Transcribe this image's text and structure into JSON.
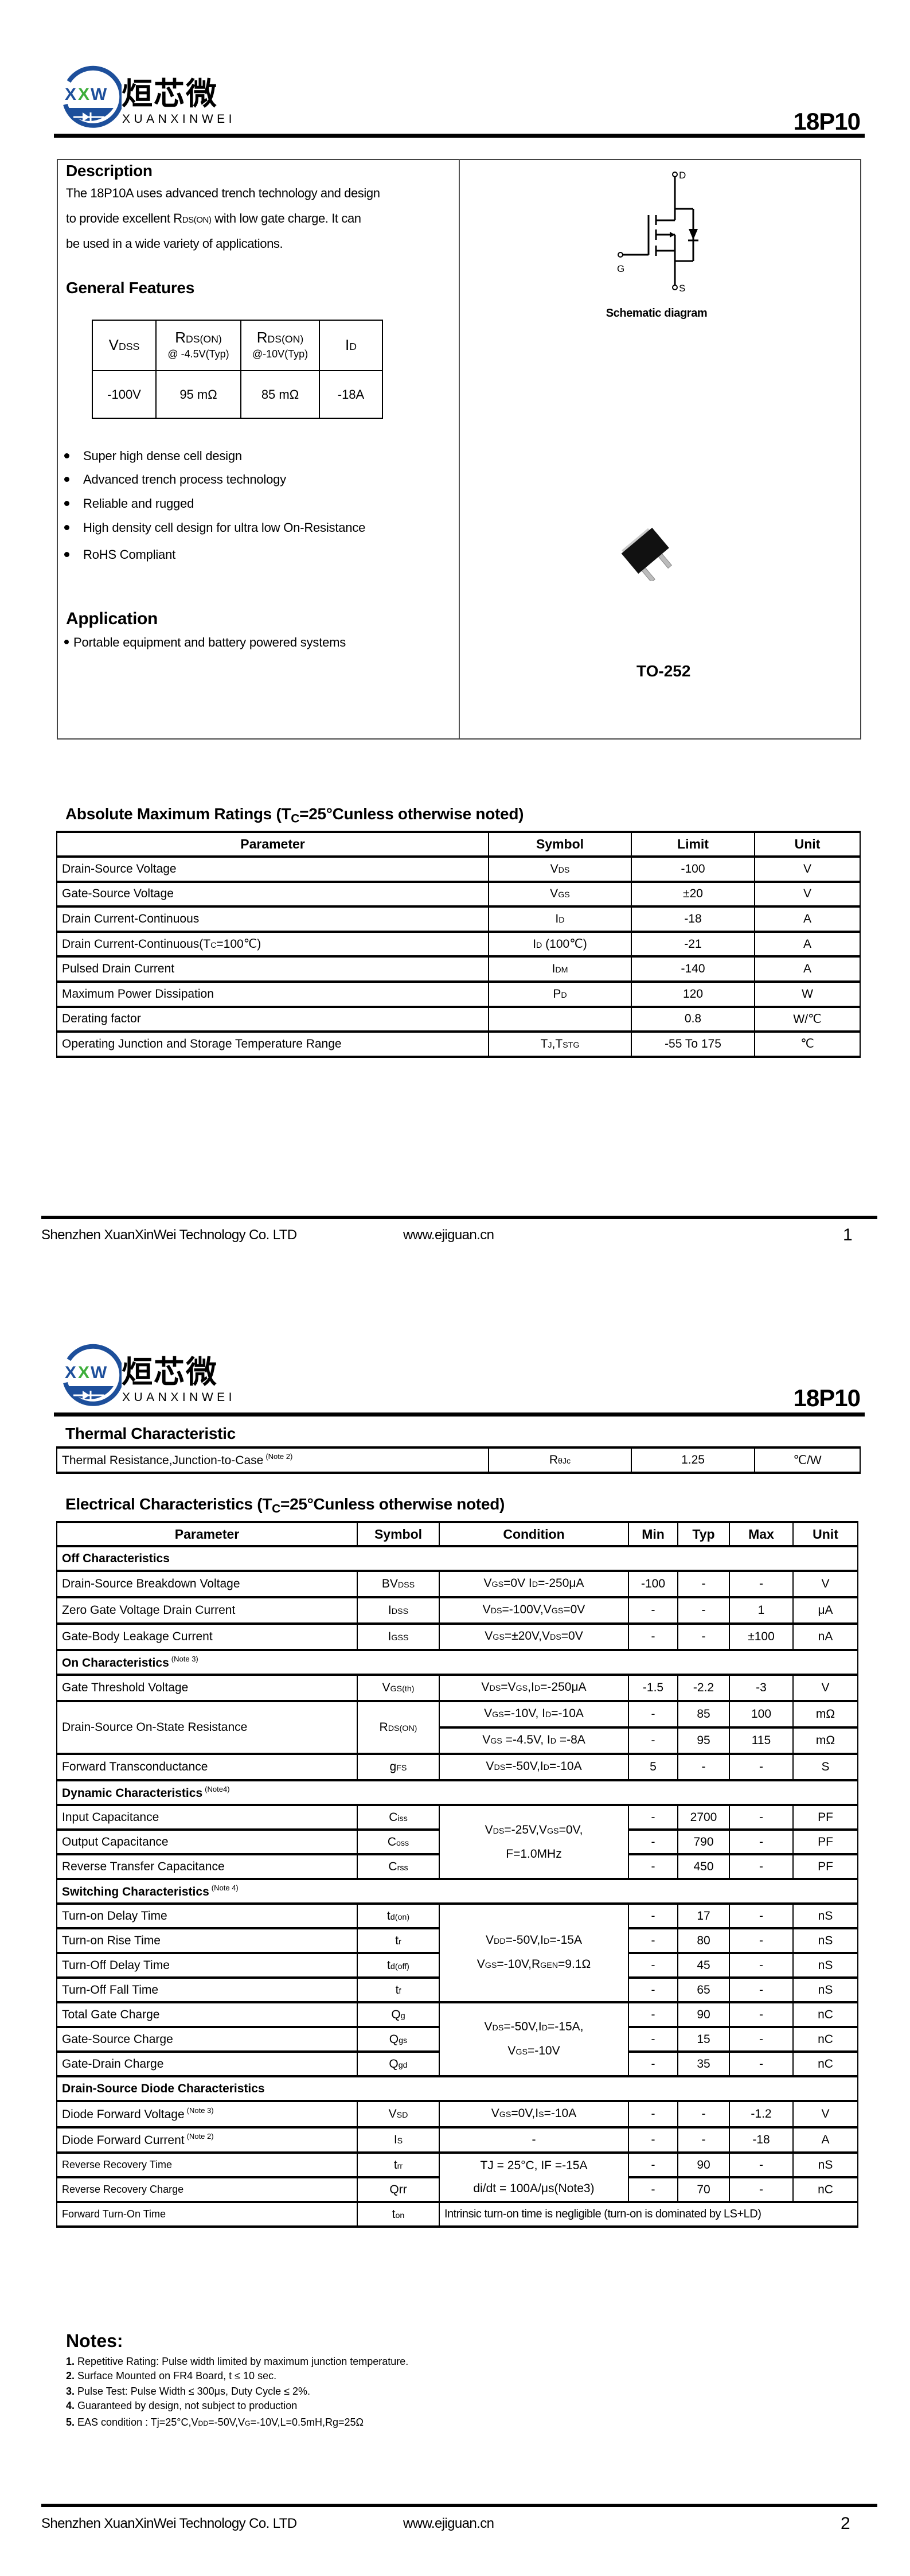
{
  "header": {
    "logo": {
      "mark": [
        "X",
        "X",
        "W"
      ],
      "cn": "烜芯微",
      "en": "XUANXINWEI"
    },
    "part_number": "18P10"
  },
  "colors": {
    "logo_blue": "#1d4f9b",
    "logo_green": "#3dae3a",
    "text": "#000000",
    "package_body": "#111111"
  },
  "page1": {
    "description": {
      "title": "Description",
      "lines": [
        [
          "The 18P10A uses advanced trench technology and design"
        ],
        [
          "to provide excellent R",
          "DS(ON)",
          " with low gate charge. It can"
        ],
        [
          "be used in a wide variety of applications."
        ]
      ]
    },
    "general_features": {
      "title": "General Features",
      "headers": [
        {
          "top": [
            "V",
            "DSS"
          ],
          "bottom": ""
        },
        {
          "top": [
            "R",
            "DS(ON)"
          ],
          "bottom": "@ -4.5V(Typ)"
        },
        {
          "top": [
            "R",
            "DS(ON)"
          ],
          "bottom": "@-10V(Typ)"
        },
        {
          "top": [
            "I",
            "D"
          ],
          "bottom": ""
        }
      ],
      "values": [
        "-100V",
        "95 mΩ",
        "85 mΩ",
        "-18A"
      ],
      "bullets": [
        "Super high dense cell design",
        "Advanced trench process technology",
        "Reliable and rugged",
        "High density cell design for ultra low On-Resistance",
        "RoHS Compliant"
      ]
    },
    "application": {
      "title": "Application",
      "items": [
        "Portable equipment and battery powered systems"
      ]
    },
    "schematic": {
      "caption": "Schematic diagram",
      "pin_d": "D",
      "pin_g": "G",
      "pin_s": "S"
    },
    "package": {
      "name": "TO-252"
    },
    "abs_max": {
      "title": [
        "Absolute Maximum Ratings (T",
        "C",
        "=25°Cunless otherwise noted)"
      ],
      "headers": [
        "Parameter",
        "Symbol",
        "Limit",
        "Unit"
      ],
      "rows": [
        {
          "param": "Drain-Source Voltage",
          "sym": [
            "V",
            "DS"
          ],
          "limit": "-100",
          "unit": "V"
        },
        {
          "param": "Gate-Source Voltage",
          "sym": [
            "V",
            "GS"
          ],
          "limit": "±20",
          "unit": "V"
        },
        {
          "param": "Drain Current-Continuous",
          "sym": [
            "I",
            "D"
          ],
          "limit": "-18",
          "unit": "A"
        },
        {
          "param": [
            "Drain Current-Continuous(T",
            "C",
            "=100℃)"
          ],
          "sym": [
            "I",
            "D",
            " (100℃)"
          ],
          "limit": "-21",
          "unit": "A"
        },
        {
          "param": "Pulsed Drain Current",
          "sym": [
            "I",
            "DM"
          ],
          "limit": "-140",
          "unit": "A"
        },
        {
          "param": "Maximum Power Dissipation",
          "sym": [
            "P",
            "D"
          ],
          "limit": "120",
          "unit": "W"
        },
        {
          "param": "Derating factor",
          "sym": "",
          "limit": "0.8",
          "unit": "W/℃"
        },
        {
          "param": "Operating Junction and Storage Temperature Range",
          "sym": [
            "T",
            "J",
            ",T",
            "STG"
          ],
          "limit": "-55 To 175",
          "unit": "℃"
        }
      ]
    },
    "footer": {
      "company": "Shenzhen XuanXinWei Technology Co. LTD",
      "website": "www.ejiguan.cn",
      "page": "1"
    }
  },
  "page2": {
    "thermal": {
      "title": "Thermal Characteristic",
      "row": {
        "param": "Thermal Resistance,Junction-to-Case",
        "note": "(Note 2)",
        "sym": [
          "R",
          "θJc"
        ],
        "value": "1.25",
        "unit": "℃/W"
      }
    },
    "electrical": {
      "title": [
        "Electrical Characteristics (T",
        "C",
        "=25°Cunless otherwise noted)"
      ],
      "headers": [
        "Parameter",
        "Symbol",
        "Condition",
        "Min",
        "Typ",
        "Max",
        "Unit"
      ],
      "rows": [
        {
          "section": "Off Characteristics",
          "note": ""
        },
        {
          "param": "Drain-Source Breakdown Voltage",
          "sym": [
            "BV",
            "DSS"
          ],
          "cond": [
            "V",
            "GS",
            "=0V I",
            "D",
            "=-250μA"
          ],
          "min": "-100",
          "typ": "-",
          "max": "-",
          "unit": "V"
        },
        {
          "param": "Zero Gate Voltage Drain Current",
          "sym": [
            "I",
            "DSS"
          ],
          "cond": [
            "V",
            "DS",
            "=-100V,V",
            "GS",
            "=0V"
          ],
          "min": "-",
          "typ": "-",
          "max": "1",
          "unit": "μA"
        },
        {
          "param": "Gate-Body Leakage Current",
          "sym": [
            "I",
            "GSS"
          ],
          "cond": [
            "V",
            "GS",
            "=±20V,V",
            "DS",
            "=0V"
          ],
          "min": "-",
          "typ": "-",
          "max": "±100",
          "unit": "nA"
        },
        {
          "section": "On Characteristics",
          "note": "(Note 3)"
        },
        {
          "param": "Gate Threshold Voltage",
          "sym": [
            "V",
            "GS(th)"
          ],
          "cond": [
            "V",
            "DS",
            "=V",
            "GS",
            ",I",
            "D",
            "=-250μA"
          ],
          "min": "-1.5",
          "typ": "-2.2",
          "max": "-3",
          "unit": "V"
        },
        {
          "param": "Drain-Source On-State Resistance",
          "span": 2,
          "sym": [
            "R",
            "DS(ON)"
          ],
          "cond": [
            "V",
            "GS",
            "=-10V, I",
            "D",
            "=-10A"
          ],
          "min": "-",
          "typ": "85",
          "max": "100",
          "unit": "mΩ"
        },
        {
          "cond": [
            "V",
            "GS",
            " =-4.5V, I",
            "D",
            " =-8A"
          ],
          "min": "-",
          "typ": "95",
          "max": "115",
          "unit": "mΩ"
        },
        {
          "param": "Forward Transconductance",
          "sym": [
            "g",
            "FS"
          ],
          "cond": [
            "V",
            "DS",
            "=-50V,I",
            "D",
            "=-10A"
          ],
          "min": "5",
          "typ": "-",
          "max": "-",
          "unit": "S"
        },
        {
          "section": "Dynamic Characteristics",
          "note": "(Note4)"
        },
        {
          "param": "Input Capacitance",
          "sym": [
            "C",
            "iss"
          ],
          "cspan": 3,
          "cond": [
            "V",
            "DS",
            "=-25V,V",
            "GS",
            "=0V,\nF=1.0MHz"
          ],
          "min": "-",
          "typ": "2700",
          "max": "-",
          "unit": "PF"
        },
        {
          "param": "Output Capacitance",
          "sym": [
            "C",
            "oss"
          ],
          "min": "-",
          "typ": "790",
          "max": "-",
          "unit": "PF"
        },
        {
          "param": "Reverse Transfer Capacitance",
          "sym": [
            "C",
            "rss"
          ],
          "min": "-",
          "typ": "450",
          "max": "-",
          "unit": "PF"
        },
        {
          "section": "Switching Characteristics",
          "note": "(Note 4)"
        },
        {
          "param": "Turn-on Delay Time",
          "sym": [
            "t",
            "d(on)"
          ],
          "cspan": 4,
          "cond": [
            "V",
            "DD",
            "=-50V,I",
            "D",
            "=-15A\nV",
            "GS",
            "=-10V,R",
            "GEN",
            "=9.1Ω"
          ],
          "min": "-",
          "typ": "17",
          "max": "-",
          "unit": "nS"
        },
        {
          "param": "Turn-on Rise Time",
          "sym": [
            "t",
            "r"
          ],
          "min": "-",
          "typ": "80",
          "max": "-",
          "unit": "nS"
        },
        {
          "param": "Turn-Off Delay Time",
          "sym": [
            "t",
            "d(off)"
          ],
          "min": "-",
          "typ": "45",
          "max": "-",
          "unit": "nS"
        },
        {
          "param": "Turn-Off Fall Time",
          "sym": [
            "t",
            "f"
          ],
          "min": "-",
          "typ": "65",
          "max": "-",
          "unit": "nS"
        },
        {
          "param": "Total Gate Charge",
          "sym": [
            "Q",
            "g"
          ],
          "cspan": 3,
          "cond": [
            "V",
            "DS",
            "=-50V,I",
            "D",
            "=-15A,\nV",
            "GS",
            "=-10V"
          ],
          "min": "-",
          "typ": "90",
          "max": "-",
          "unit": "nC"
        },
        {
          "param": "Gate-Source Charge",
          "sym": [
            "Q",
            "gs"
          ],
          "min": "-",
          "typ": "15",
          "max": "-",
          "unit": "nC"
        },
        {
          "param": "Gate-Drain Charge",
          "sym": [
            "Q",
            "gd"
          ],
          "min": "-",
          "typ": "35",
          "max": "-",
          "unit": "nC"
        },
        {
          "section": "Drain-Source Diode Characteristics",
          "note": ""
        },
        {
          "param": "Diode Forward Voltage",
          "note": "(Note 3)",
          "sym": [
            "V",
            "SD"
          ],
          "cond": [
            "V",
            "GS",
            "=0V,I",
            "S",
            "=-10A"
          ],
          "min": "-",
          "typ": "-",
          "max": "-1.2",
          "unit": "V"
        },
        {
          "param": "Diode Forward Current",
          "note": "(Note 2)",
          "sym": [
            "I",
            "S"
          ],
          "cond": "-",
          "min": "-",
          "typ": "-",
          "max": "-18",
          "unit": "A"
        },
        {
          "param": "Reverse Recovery Time",
          "small": true,
          "sym": [
            "t",
            "rr"
          ],
          "cspan": 2,
          "cond": "TJ = 25°C, IF =-15A\ndi/dt = 100A/μs(Note3)",
          "min": "-",
          "typ": "90",
          "max": "-",
          "unit": "nS"
        },
        {
          "param": "Reverse Recovery Charge",
          "small": true,
          "sym": "Qrr",
          "min": "-",
          "typ": "70",
          "max": "-",
          "unit": "nC"
        },
        {
          "param": "Forward Turn-On Time",
          "small": true,
          "sym": [
            "t",
            "on"
          ],
          "wide": "Intrinsic turn-on time is negligible (turn-on is dominated by LS+LD)"
        }
      ]
    },
    "notes": {
      "title": "Notes:",
      "items": [
        {
          "num": "1.",
          "text": [
            "Repetitive Rating: Pulse width limited by maximum junction temperature."
          ]
        },
        {
          "num": "2.",
          "text": [
            "Surface Mounted on FR4 Board, t ≤ 10 sec."
          ]
        },
        {
          "num": "3.",
          "text": [
            "Pulse Test: Pulse Width ≤ 300μs, Duty Cycle ≤ 2%."
          ]
        },
        {
          "num": "4.",
          "text": [
            "Guaranteed by design, not subject to production"
          ]
        },
        {
          "num": "5.",
          "text": [
            "EAS condition : Tj=25°C,V",
            "DD",
            "=-50V,V",
            "G",
            "=-10V,L=0.5mH,Rg=25Ω"
          ]
        }
      ]
    },
    "footer": {
      "company": "Shenzhen XuanXinWei Technology Co. LTD",
      "website": "www.ejiguan.cn",
      "page": "2"
    }
  }
}
